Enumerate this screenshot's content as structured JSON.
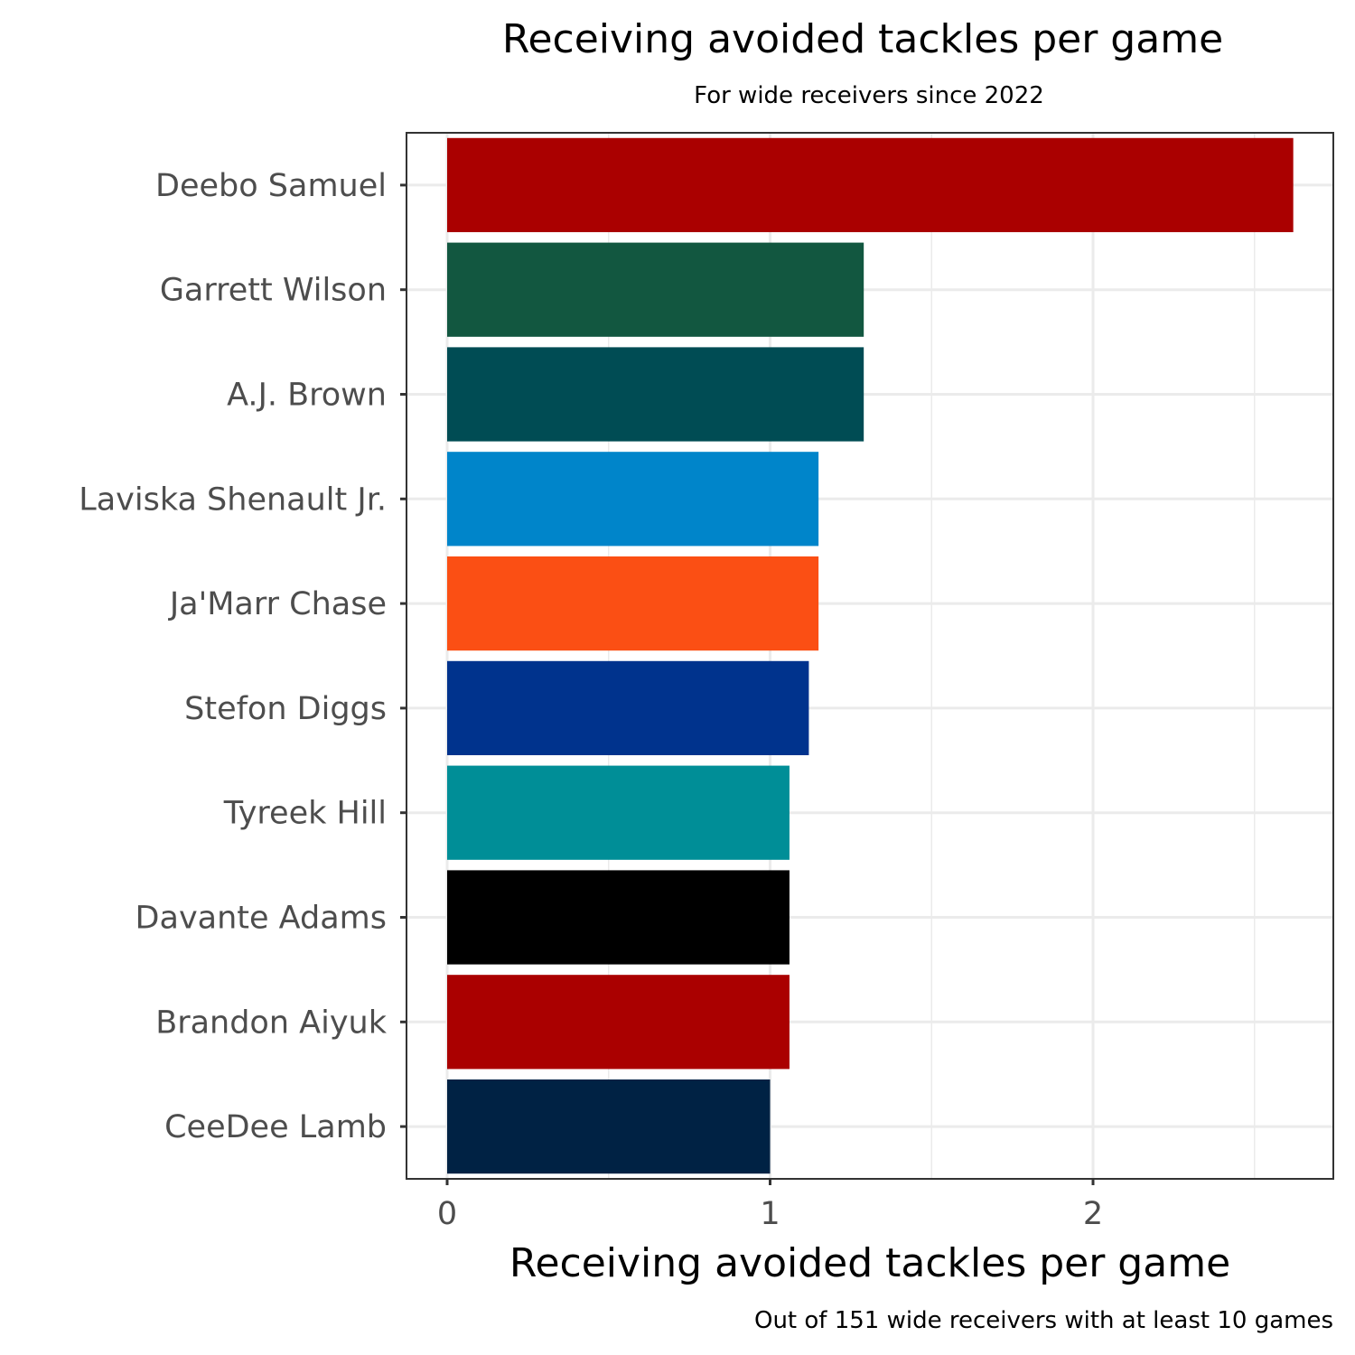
{
  "chart_data": {
    "type": "bar",
    "orientation": "horizontal",
    "title": "Receiving avoided tackles per game",
    "subtitle": "For wide receivers since 2022",
    "xlabel": "Receiving avoided tackles per game",
    "caption": "Out of 151 wide receivers with at least 10 games",
    "xlim": [
      0,
      2.7
    ],
    "xticks": [
      0,
      1,
      2
    ],
    "grid": true,
    "categories": [
      "Deebo Samuel",
      "Garrett Wilson",
      "A.J. Brown",
      "Laviska Shenault Jr.",
      "Ja'Marr Chase",
      "Stefon Diggs",
      "Tyreek Hill",
      "Davante Adams",
      "Brandon Aiyuk",
      "CeeDee Lamb"
    ],
    "values": [
      2.62,
      1.29,
      1.29,
      1.15,
      1.15,
      1.12,
      1.06,
      1.06,
      1.06,
      1.0
    ],
    "colors": [
      "#AA0000",
      "#125740",
      "#004C54",
      "#0085CA",
      "#FB4F14",
      "#00338D",
      "#008E97",
      "#000000",
      "#AA0000",
      "#002244"
    ]
  }
}
